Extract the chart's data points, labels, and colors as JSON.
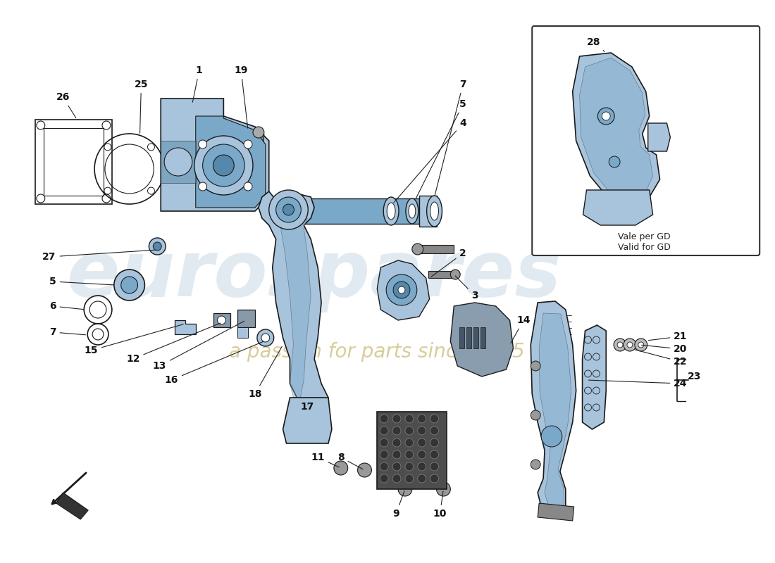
{
  "background_color": "#ffffff",
  "part_color": "#a8c4dc",
  "part_color_dark": "#7aa8c8",
  "part_color_darker": "#5588aa",
  "outline_color": "#1a1a1a",
  "label_fontsize": 10,
  "watermark_color": "#d0dde8",
  "watermark_text_color": "#c8b870",
  "inset_label1": "Vale per GD",
  "inset_label2": "Valid for GD"
}
